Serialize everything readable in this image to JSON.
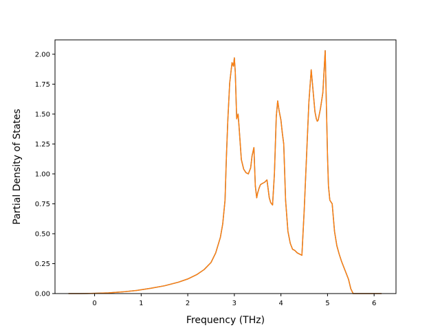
{
  "chart_data": {
    "type": "line",
    "title": "",
    "xlabel": "Frequency (THz)",
    "ylabel": "Partial Density of States",
    "xlim": [
      -0.85,
      6.47
    ],
    "ylim": [
      0,
      2.12
    ],
    "xticks": [
      0,
      1,
      2,
      3,
      4,
      5,
      6
    ],
    "xtick_labels": [
      "0",
      "1",
      "2",
      "3",
      "4",
      "5",
      "6"
    ],
    "yticks": [
      0,
      0.25,
      0.5,
      0.75,
      1.0,
      1.25,
      1.5,
      1.75,
      2.0
    ],
    "ytick_labels": [
      "0.00",
      "0.25",
      "0.50",
      "0.75",
      "1.00",
      "1.25",
      "1.50",
      "1.75",
      "2.00"
    ],
    "grid": false,
    "series": [
      {
        "color": "#1f77b4",
        "x": [
          -0.55,
          -0.3,
          0,
          0.3,
          0.6,
          0.9,
          1.2,
          1.5,
          1.8,
          2.0,
          2.2,
          2.35,
          2.5,
          2.6,
          2.7,
          2.75,
          2.8,
          2.83,
          2.86,
          2.9,
          2.95,
          2.98,
          3.0,
          3.02,
          3.05,
          3.08,
          3.1,
          3.15,
          3.2,
          3.25,
          3.3,
          3.35,
          3.38,
          3.42,
          3.45,
          3.48,
          3.5,
          3.53,
          3.56,
          3.6,
          3.65,
          3.7,
          3.75,
          3.78,
          3.82,
          3.86,
          3.9,
          3.93,
          3.96,
          4.0,
          4.03,
          4.06,
          4.1,
          4.15,
          4.2,
          4.25,
          4.3,
          4.35,
          4.4,
          4.45,
          4.5,
          4.55,
          4.6,
          4.65,
          4.7,
          4.73,
          4.76,
          4.78,
          4.8,
          4.85,
          4.9,
          4.95,
          4.98,
          5.0,
          5.02,
          5.05,
          5.1,
          5.15,
          5.2,
          5.25,
          5.3,
          5.35,
          5.4,
          5.45,
          5.5,
          5.55,
          5.58,
          5.6,
          5.8,
          6.15
        ],
        "y": [
          0,
          0,
          0.002,
          0.006,
          0.014,
          0.026,
          0.044,
          0.065,
          0.095,
          0.122,
          0.16,
          0.2,
          0.26,
          0.34,
          0.47,
          0.58,
          0.78,
          1.15,
          1.45,
          1.76,
          1.93,
          1.9,
          1.97,
          1.85,
          1.46,
          1.5,
          1.4,
          1.12,
          1.04,
          1.01,
          1.0,
          1.05,
          1.15,
          1.22,
          0.9,
          0.8,
          0.84,
          0.88,
          0.91,
          0.92,
          0.93,
          0.95,
          0.8,
          0.76,
          0.74,
          1.0,
          1.48,
          1.61,
          1.53,
          1.45,
          1.34,
          1.25,
          0.78,
          0.52,
          0.42,
          0.37,
          0.36,
          0.34,
          0.33,
          0.32,
          0.7,
          1.15,
          1.6,
          1.87,
          1.65,
          1.52,
          1.46,
          1.44,
          1.45,
          1.55,
          1.68,
          2.03,
          1.5,
          1.15,
          0.9,
          0.78,
          0.75,
          0.52,
          0.4,
          0.33,
          0.27,
          0.22,
          0.17,
          0.12,
          0.04,
          0.0,
          0.0,
          0.0,
          0.0,
          0.0
        ]
      },
      {
        "color": "#ff7f0e",
        "x": [
          -0.55,
          -0.3,
          0,
          0.3,
          0.6,
          0.9,
          1.2,
          1.5,
          1.8,
          2.0,
          2.2,
          2.35,
          2.5,
          2.6,
          2.7,
          2.75,
          2.8,
          2.83,
          2.86,
          2.9,
          2.95,
          2.98,
          3.0,
          3.02,
          3.05,
          3.08,
          3.1,
          3.15,
          3.2,
          3.25,
          3.3,
          3.35,
          3.38,
          3.42,
          3.45,
          3.48,
          3.5,
          3.53,
          3.56,
          3.6,
          3.65,
          3.7,
          3.75,
          3.78,
          3.82,
          3.86,
          3.9,
          3.93,
          3.96,
          4.0,
          4.03,
          4.06,
          4.1,
          4.15,
          4.2,
          4.25,
          4.3,
          4.35,
          4.4,
          4.45,
          4.5,
          4.55,
          4.6,
          4.65,
          4.7,
          4.73,
          4.76,
          4.78,
          4.8,
          4.85,
          4.9,
          4.95,
          4.98,
          5.0,
          5.02,
          5.05,
          5.1,
          5.15,
          5.2,
          5.25,
          5.3,
          5.35,
          5.4,
          5.45,
          5.5,
          5.55,
          5.58,
          5.6,
          5.8,
          6.15
        ],
        "y": [
          0,
          0,
          0.002,
          0.006,
          0.014,
          0.026,
          0.044,
          0.065,
          0.095,
          0.122,
          0.16,
          0.2,
          0.26,
          0.34,
          0.47,
          0.58,
          0.78,
          1.15,
          1.45,
          1.76,
          1.93,
          1.9,
          1.97,
          1.85,
          1.46,
          1.5,
          1.4,
          1.12,
          1.04,
          1.01,
          1.0,
          1.05,
          1.15,
          1.22,
          0.9,
          0.8,
          0.84,
          0.88,
          0.91,
          0.92,
          0.93,
          0.95,
          0.8,
          0.76,
          0.74,
          1.0,
          1.48,
          1.61,
          1.53,
          1.45,
          1.34,
          1.25,
          0.78,
          0.52,
          0.42,
          0.37,
          0.36,
          0.34,
          0.33,
          0.32,
          0.7,
          1.15,
          1.6,
          1.87,
          1.65,
          1.52,
          1.46,
          1.44,
          1.45,
          1.55,
          1.68,
          2.03,
          1.5,
          1.15,
          0.9,
          0.78,
          0.75,
          0.52,
          0.4,
          0.33,
          0.27,
          0.22,
          0.17,
          0.12,
          0.04,
          0.0,
          0.0,
          0.0,
          0.0,
          0.0
        ]
      }
    ]
  }
}
